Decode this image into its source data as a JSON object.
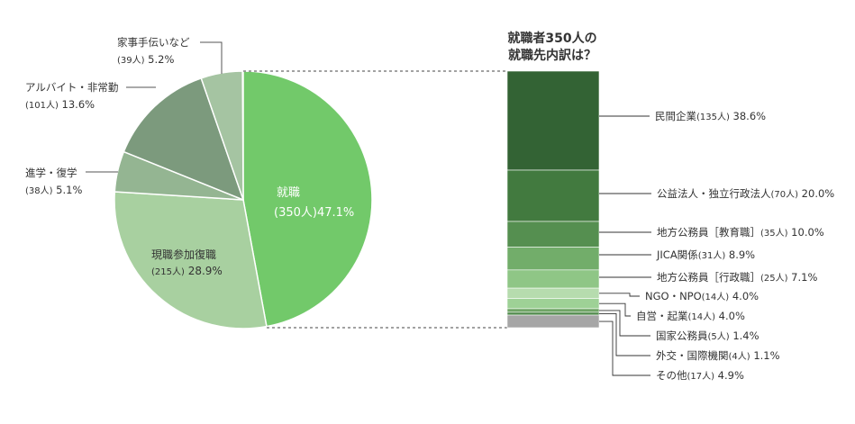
{
  "chart_data": [
    {
      "type": "pie",
      "slices": [
        {
          "name": "就職",
          "count": "(350人)",
          "percent": 47.1,
          "pct_label": "47.1%",
          "color": "#72c96a"
        },
        {
          "name": "現職参加復職",
          "count": "(215人)",
          "percent": 28.9,
          "pct_label": "28.9%",
          "color": "#a8d0a0"
        },
        {
          "name": "進学・復学",
          "count": "(38人)",
          "percent": 5.1,
          "pct_label": "5.1%",
          "color": "#94b592"
        },
        {
          "name": "アルバイト・非常勤",
          "count": "(101人)",
          "percent": 13.6,
          "pct_label": "13.6%",
          "color": "#7c9a7d"
        },
        {
          "name": "家事手伝いなど",
          "count": "(39人)",
          "percent": 5.2,
          "pct_label": "5.2%",
          "color": "#a5c4a2"
        }
      ]
    },
    {
      "type": "bar",
      "stacked": true,
      "title_lines": [
        "就職者350人の",
        "就職先内訳は？"
      ],
      "segments": [
        {
          "name": "民間企業",
          "count": "(135人)",
          "percent": 38.6,
          "pct_label": "38.6%",
          "color": "#336334"
        },
        {
          "name": "公益法人・独立行政法人",
          "count": "(70人)",
          "percent": 20.0,
          "pct_label": "20.0%",
          "color": "#427a3f"
        },
        {
          "name": "地方公務員［教育職］",
          "count": "(35人)",
          "percent": 10.0,
          "pct_label": "10.0%",
          "color": "#558f50"
        },
        {
          "name": "JICA関係",
          "count": "(31人)",
          "percent": 8.9,
          "pct_label": "8.9%",
          "color": "#72ad6a"
        },
        {
          "name": "地方公務員［行政職］",
          "count": "(25人)",
          "percent": 7.1,
          "pct_label": "7.1%",
          "color": "#8fc686"
        },
        {
          "name": "NGO・NPO",
          "count": "(14人)",
          "percent": 4.0,
          "pct_label": "4.0%",
          "color": "#b6dcae"
        },
        {
          "name": "自営・起業",
          "count": "(14人)",
          "percent": 4.0,
          "pct_label": "4.0%",
          "color": "#9ed196"
        },
        {
          "name": "国家公務員",
          "count": "(5人)",
          "percent": 1.4,
          "pct_label": "1.4%",
          "color": "#6fa566"
        },
        {
          "name": "外交・国際機関",
          "count": "(4人)",
          "percent": 1.1,
          "pct_label": "1.1%",
          "color": "#4f8a4b"
        },
        {
          "name": "その他",
          "count": "(17人)",
          "percent": 4.9,
          "pct_label": "4.9%",
          "color": "#a6a6a6"
        }
      ]
    }
  ]
}
